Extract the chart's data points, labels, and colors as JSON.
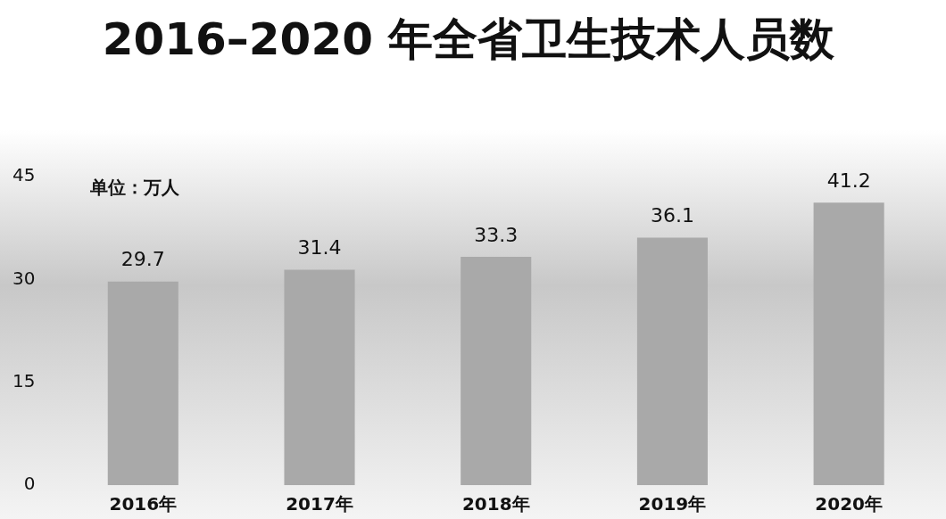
{
  "chart_data": {
    "type": "bar",
    "title": "2016–2020 年全省卫生技术人员数",
    "categories": [
      "2016年",
      "2017年",
      "2018年",
      "2019年",
      "2020年"
    ],
    "values": [
      29.7,
      31.4,
      33.3,
      36.1,
      41.2
    ],
    "color": "#a9a9a9",
    "ylim": [
      0,
      45
    ],
    "yticks": [
      0,
      15,
      30,
      45
    ],
    "grid": false,
    "legend": false,
    "data_labels": true,
    "annotations": [
      "单位：万人"
    ]
  }
}
